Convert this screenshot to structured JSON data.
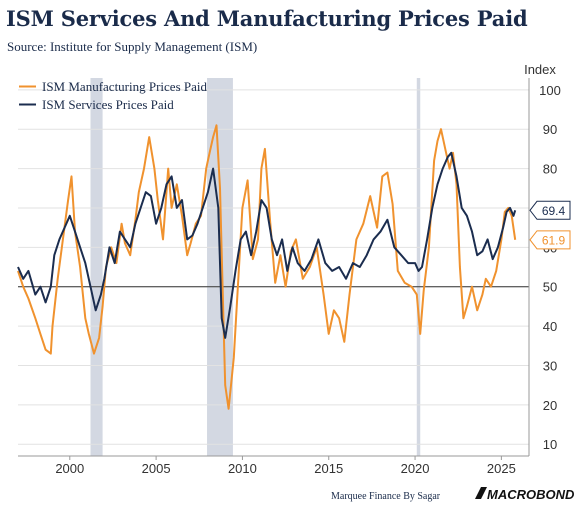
{
  "header": {
    "title": "ISM Services And Manufacturing Prices Paid",
    "subtitle": "Source: Institute for Supply Management (ISM)"
  },
  "footer": {
    "credit": "Marquee Finance By Sagar",
    "brand": "MACROBOND"
  },
  "colors": {
    "manufacturing": "#f0922e",
    "services": "#1b2d4f",
    "recession": "#d3d8e2",
    "grid": "#e2e2e2",
    "reference_line": "#333333"
  },
  "chart_data": {
    "type": "line",
    "title": "ISM Services And Manufacturing Prices Paid",
    "subtitle": "Source: Institute for Supply Management (ISM)",
    "ylabel": "Index",
    "y_axis_side": "right",
    "ylim": [
      7,
      103
    ],
    "yticks": [
      10,
      20,
      30,
      40,
      50,
      60,
      70,
      80,
      90,
      100
    ],
    "xlim": [
      1997.0,
      2026.6
    ],
    "xticks": [
      2000,
      2005,
      2010,
      2015,
      2020,
      2025
    ],
    "reference_line": 50,
    "grid": true,
    "legend_position": "top-left",
    "recession_shading": [
      [
        2001.2,
        2001.9
      ],
      [
        2007.95,
        2009.45
      ],
      [
        2020.1,
        2020.3
      ]
    ],
    "last_values": {
      "services": 69.4,
      "manufacturing": 61.9
    },
    "series": [
      {
        "name": "ISM Manufacturing Prices Paid",
        "color": "#f0922e",
        "x": [
          1997.0,
          1997.3,
          1997.6,
          1998.0,
          1998.3,
          1998.6,
          1998.9,
          1999.0,
          1999.3,
          1999.6,
          1999.9,
          2000.1,
          2000.3,
          2000.6,
          2000.9,
          2001.1,
          2001.4,
          2001.7,
          2001.9,
          2002.1,
          2002.4,
          2002.7,
          2003.0,
          2003.2,
          2003.5,
          2003.8,
          2004.0,
          2004.3,
          2004.6,
          2004.9,
          2005.1,
          2005.4,
          2005.7,
          2005.9,
          2006.2,
          2006.5,
          2006.8,
          2007.0,
          2007.3,
          2007.6,
          2007.9,
          2008.1,
          2008.3,
          2008.5,
          2008.7,
          2008.9,
          2009.0,
          2009.2,
          2009.5,
          2009.8,
          2010.0,
          2010.3,
          2010.6,
          2010.9,
          2011.1,
          2011.3,
          2011.6,
          2011.9,
          2012.2,
          2012.5,
          2012.8,
          2013.1,
          2013.5,
          2013.9,
          2014.3,
          2014.7,
          2015.0,
          2015.3,
          2015.6,
          2015.9,
          2016.2,
          2016.6,
          2017.0,
          2017.4,
          2017.8,
          2018.1,
          2018.4,
          2018.7,
          2019.0,
          2019.4,
          2019.8,
          2020.1,
          2020.3,
          2020.5,
          2020.8,
          2021.1,
          2021.3,
          2021.5,
          2021.8,
          2022.0,
          2022.2,
          2022.4,
          2022.6,
          2022.8,
          2023.0,
          2023.3,
          2023.6,
          2023.9,
          2024.1,
          2024.4,
          2024.7,
          2025.0,
          2025.2,
          2025.4,
          2025.6,
          2025.8
        ],
        "values": [
          54,
          50,
          47,
          42,
          38,
          34,
          33,
          40,
          52,
          62,
          72,
          78,
          64,
          55,
          42,
          38,
          33,
          37,
          45,
          55,
          60,
          56,
          66,
          61,
          58,
          67,
          74,
          80,
          88,
          80,
          72,
          62,
          80,
          70,
          76,
          68,
          58,
          61,
          66,
          68,
          80,
          84,
          88,
          91,
          75,
          42,
          25,
          19,
          32,
          55,
          70,
          77,
          57,
          62,
          80,
          85,
          67,
          51,
          58,
          50,
          59,
          62,
          52,
          55,
          60,
          48,
          38,
          44,
          42,
          36,
          48,
          62,
          66,
          73,
          65,
          78,
          79,
          71,
          54,
          51,
          50,
          48,
          38,
          49,
          60,
          82,
          87,
          90,
          84,
          80,
          84,
          76,
          55,
          42,
          45,
          50,
          44,
          48,
          52,
          50,
          54,
          62,
          69,
          70,
          68,
          61.9
        ]
      },
      {
        "name": "ISM Services Prices Paid",
        "color": "#1b2d4f",
        "x": [
          1997.0,
          1997.3,
          1997.6,
          1998.0,
          1998.3,
          1998.6,
          1998.9,
          1999.1,
          1999.4,
          1999.7,
          2000.0,
          2000.3,
          2000.6,
          2000.9,
          2001.2,
          2001.5,
          2001.8,
          2002.0,
          2002.3,
          2002.6,
          2002.9,
          2003.2,
          2003.5,
          2003.8,
          2004.1,
          2004.4,
          2004.7,
          2005.0,
          2005.3,
          2005.6,
          2005.9,
          2006.2,
          2006.5,
          2006.8,
          2007.1,
          2007.4,
          2007.7,
          2008.0,
          2008.3,
          2008.6,
          2008.8,
          2009.0,
          2009.3,
          2009.6,
          2009.9,
          2010.2,
          2010.5,
          2010.8,
          2011.1,
          2011.4,
          2011.7,
          2012.0,
          2012.3,
          2012.6,
          2012.9,
          2013.2,
          2013.6,
          2014.0,
          2014.4,
          2014.8,
          2015.2,
          2015.6,
          2016.0,
          2016.4,
          2016.8,
          2017.2,
          2017.6,
          2018.0,
          2018.4,
          2018.8,
          2019.2,
          2019.6,
          2020.0,
          2020.2,
          2020.4,
          2020.7,
          2021.0,
          2021.3,
          2021.6,
          2021.9,
          2022.1,
          2022.4,
          2022.7,
          2023.0,
          2023.3,
          2023.6,
          2023.9,
          2024.2,
          2024.5,
          2024.8,
          2025.1,
          2025.3,
          2025.5,
          2025.7,
          2025.8
        ],
        "values": [
          55,
          52,
          54,
          48,
          50,
          46,
          50,
          58,
          62,
          65,
          68,
          64,
          60,
          56,
          50,
          44,
          48,
          52,
          60,
          56,
          64,
          62,
          60,
          66,
          70,
          74,
          73,
          66,
          70,
          76,
          78,
          70,
          72,
          62,
          63,
          66,
          70,
          74,
          80,
          70,
          42,
          37,
          45,
          54,
          62,
          64,
          58,
          64,
          72,
          70,
          62,
          58,
          62,
          54,
          60,
          56,
          54,
          57,
          62,
          56,
          54,
          55,
          52,
          56,
          55,
          58,
          62,
          64,
          67,
          60,
          58,
          56,
          56,
          54,
          55,
          62,
          70,
          76,
          80,
          83,
          84,
          78,
          70,
          68,
          64,
          58,
          59,
          62,
          57,
          60,
          65,
          69,
          70,
          68,
          69.4
        ]
      }
    ]
  }
}
